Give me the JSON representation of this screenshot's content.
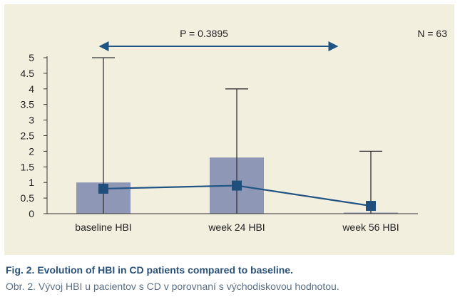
{
  "chart_data": {
    "type": "bar",
    "title": "",
    "xlabel": "",
    "ylabel": "",
    "ylim": [
      0,
      5
    ],
    "yticks": [
      "0",
      "0.5",
      "1",
      "1.5",
      "2",
      "2.5",
      "3",
      "3.5",
      "4",
      "4.5",
      "5"
    ],
    "categories": [
      "baseline HBI",
      "week 24 HBI",
      "week 56 HBI"
    ],
    "bar_values": [
      1,
      1.8,
      0
    ],
    "error_max": [
      5,
      4,
      2
    ],
    "line_values": [
      0.8,
      0.9,
      0.25
    ],
    "annotations": {
      "p_value": "P = 0.3895",
      "n": "N = 63"
    },
    "grid": false,
    "legend": "none",
    "colors": {
      "bar": "#8f97b6",
      "line": "#1f5484",
      "marker": "#1f4f7a",
      "arrow": "#1f5484",
      "axis": "#333333",
      "background": "#f3efdf"
    }
  },
  "caption": {
    "title": "Fig. 2. Evolution of HBI in CD patients compared to baseline.",
    "subtitle": "Obr. 2. Vývoj HBI u pacientov s CD v porovnaní s východiskovou hodnotou."
  }
}
